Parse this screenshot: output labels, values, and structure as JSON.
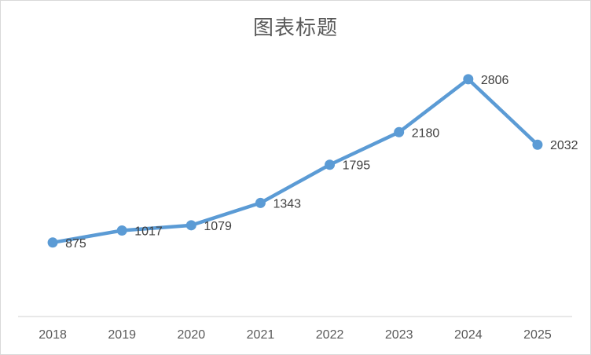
{
  "chart_data": {
    "type": "line",
    "title": "图表标题",
    "categories": [
      "2018",
      "2019",
      "2020",
      "2021",
      "2022",
      "2023",
      "2024",
      "2025"
    ],
    "values": [
      875,
      1017,
      1079,
      1343,
      1795,
      2180,
      2806,
      2032
    ],
    "data_labels": [
      875,
      1017,
      1079,
      1343,
      1795,
      2180,
      2806,
      2032
    ],
    "data_label_position": "right",
    "xlabel": "",
    "ylabel": "",
    "ylim": [
      0,
      3000
    ],
    "grid": false,
    "legend": false,
    "y_axis_visible": false,
    "marker": "circle",
    "colors": {
      "series_line": "#5B9BD5",
      "marker_fill": "#5B9BD5",
      "axis_line": "#D9D9D9",
      "tick_label": "#595959",
      "data_label": "#404040",
      "title": "#595959",
      "frame_border": "#D9D9D9",
      "background": "#FFFFFF"
    }
  }
}
